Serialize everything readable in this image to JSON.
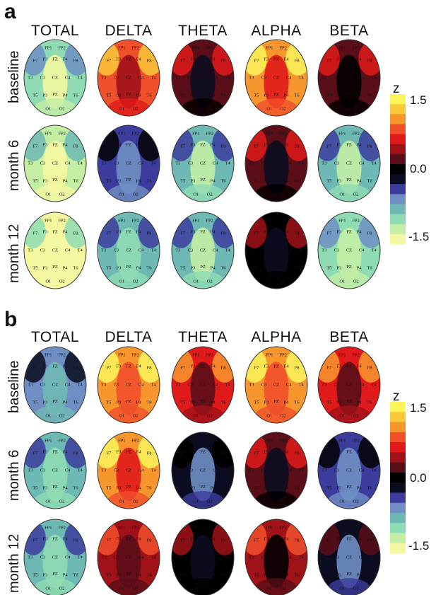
{
  "panels": [
    {
      "letter": "a",
      "columns": [
        "TOTAL",
        "DELTA",
        "THETA",
        "ALPHA",
        "BETA"
      ],
      "rows": [
        "baseline",
        "month 6",
        "month 12"
      ],
      "colorbar": {
        "symbol": "z",
        "ticks": [
          "1.5",
          "0.0",
          "-1.5"
        ]
      },
      "levels": [
        [
          -1.1,
          0.8,
          0.2,
          1.0,
          0.3
        ],
        [
          -1.3,
          -0.4,
          -0.9,
          0.2,
          -0.9
        ],
        [
          -1.4,
          -0.8,
          -0.9,
          0.1,
          -1.0
        ]
      ]
    },
    {
      "letter": "b",
      "columns": [
        "TOTAL",
        "DELTA",
        "THETA",
        "ALPHA",
        "BETA"
      ],
      "rows": [
        "baseline",
        "month 6",
        "month 12"
      ],
      "colorbar": {
        "symbol": "z",
        "ticks": [
          "1.5",
          "0.0",
          "-1.5"
        ]
      },
      "levels": [
        [
          -0.6,
          1.1,
          0.6,
          1.1,
          0.6
        ],
        [
          -0.8,
          1.0,
          -0.3,
          0.2,
          -0.4
        ],
        [
          -0.8,
          0.5,
          0.1,
          0.4,
          -0.2
        ]
      ]
    }
  ],
  "electrodes": [
    "FP1",
    "FP2",
    "F7",
    "F3",
    "FZ",
    "F4",
    "F8",
    "T3",
    "C3",
    "CZ",
    "C4",
    "T4",
    "T5",
    "P3",
    "PZ",
    "P4",
    "T6",
    "O1",
    "O2"
  ],
  "colormap": [
    "#f4f7a0",
    "#c3eea4",
    "#8fdcb4",
    "#6fb9b4",
    "#6f8fc4",
    "#3c3c9c",
    "#0c0c20",
    "#000000",
    "#5a0e18",
    "#a01218",
    "#e01a1a",
    "#f0502a",
    "#f8962e",
    "#fbc83a",
    "#fcf55a"
  ]
}
